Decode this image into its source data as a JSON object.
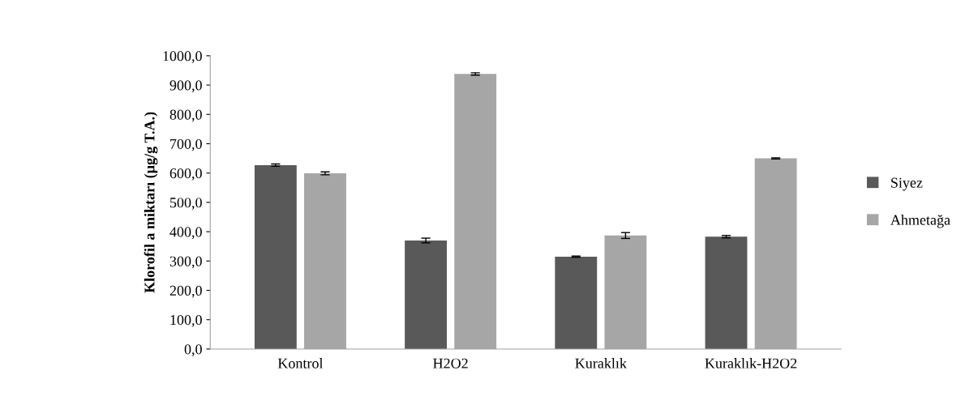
{
  "chart_data": {
    "type": "bar",
    "ylabel": "Klorofil a miktarı (µg/g T.A.)",
    "categories": [
      "Kontrol",
      "H2O2",
      "Kuraklık",
      "Kuraklık-H2O2"
    ],
    "series": [
      {
        "name": "Siyez",
        "color": "#595959",
        "values": [
          627,
          370,
          315,
          383
        ],
        "errors": [
          4,
          8,
          2,
          4
        ]
      },
      {
        "name": "Ahmetağa",
        "color": "#a6a6a6",
        "values": [
          599,
          938,
          387,
          650
        ],
        "errors": [
          5,
          4,
          10,
          2
        ]
      }
    ],
    "ylim": [
      0,
      1000
    ],
    "yticks": [
      {
        "value": 0,
        "label": "0,0"
      },
      {
        "value": 100,
        "label": "100,0"
      },
      {
        "value": 200,
        "label": "200,0"
      },
      {
        "value": 300,
        "label": "300,0"
      },
      {
        "value": 400,
        "label": "400,0"
      },
      {
        "value": 500,
        "label": "500,0"
      },
      {
        "value": 600,
        "label": "600,0"
      },
      {
        "value": 700,
        "label": "700,0"
      },
      {
        "value": 800,
        "label": "800,0"
      },
      {
        "value": 900,
        "label": "900,0"
      },
      {
        "value": 1000,
        "label": "1000,0"
      }
    ],
    "grid": false,
    "legend": "right"
  }
}
